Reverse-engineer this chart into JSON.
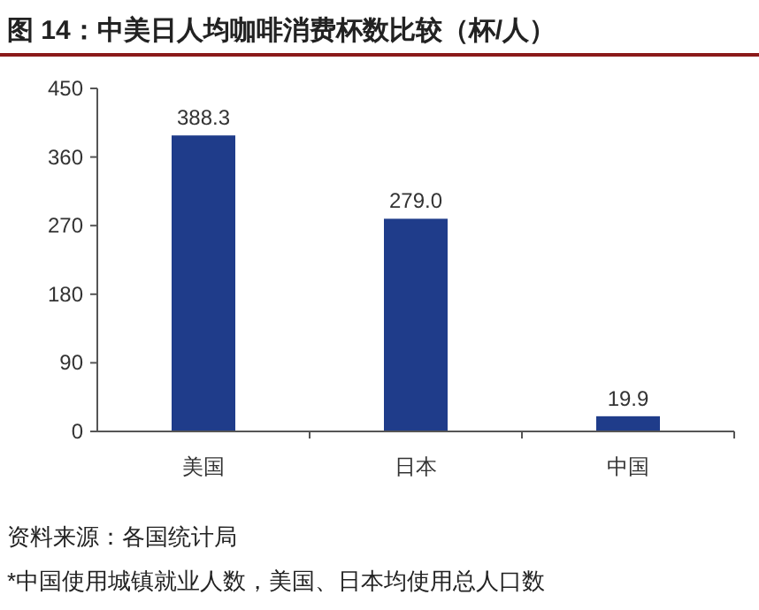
{
  "chart_data": {
    "type": "bar",
    "title": "图 14：中美日人均咖啡消费杯数比较（杯/人）",
    "categories": [
      "美国",
      "日本",
      "中国"
    ],
    "values": [
      388.3,
      279.0,
      19.9
    ],
    "value_labels": [
      "388.3",
      "279.0",
      "19.9"
    ],
    "color": "#1f3c8a",
    "ylim": [
      0,
      450
    ],
    "yticks": [
      0,
      90,
      180,
      270,
      360,
      450
    ],
    "grid": false,
    "annotations": [
      "资料来源：各国统计局",
      "*中国使用城镇就业人数，美国、日本均使用总人口数"
    ]
  }
}
